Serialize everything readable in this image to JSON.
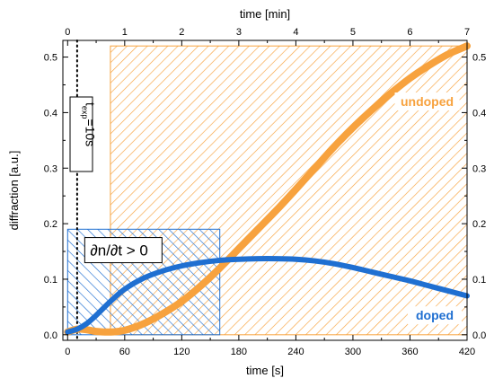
{
  "chart_data": {
    "type": "line",
    "x_bottom": {
      "label": "time [s]",
      "range": [
        -5,
        420
      ],
      "ticks": [
        0,
        60,
        120,
        180,
        240,
        300,
        360,
        420
      ]
    },
    "x_top": {
      "label": "time [min]",
      "range": [
        -0.0833,
        7
      ],
      "ticks": [
        0,
        1,
        2,
        3,
        4,
        5,
        6,
        7
      ]
    },
    "y": {
      "label": "diffraction [a.u.]",
      "range": [
        -0.01,
        0.53
      ],
      "ticks": [
        "0.0",
        "0.1",
        "0.2",
        "0.3",
        "0.4",
        "0.5"
      ]
    },
    "series": [
      {
        "name": "undoped",
        "color": "#f7a23e",
        "x": [
          0,
          10,
          20,
          30,
          45,
          60,
          80,
          100,
          120,
          140,
          160,
          180,
          200,
          220,
          240,
          260,
          280,
          300,
          320,
          340,
          360,
          380,
          400,
          420
        ],
        "y": [
          0.005,
          0.01,
          0.009,
          0.006,
          0.005,
          0.008,
          0.02,
          0.038,
          0.06,
          0.088,
          0.12,
          0.155,
          0.19,
          0.225,
          0.262,
          0.3,
          0.338,
          0.373,
          0.405,
          0.435,
          0.462,
          0.485,
          0.505,
          0.52
        ]
      },
      {
        "name": "doped",
        "color": "#1f6fd1",
        "x": [
          0,
          10,
          20,
          30,
          45,
          60,
          80,
          100,
          120,
          140,
          160,
          180,
          200,
          220,
          240,
          260,
          280,
          300,
          320,
          340,
          360,
          380,
          400,
          420
        ],
        "y": [
          0.005,
          0.01,
          0.02,
          0.035,
          0.06,
          0.082,
          0.102,
          0.115,
          0.124,
          0.13,
          0.134,
          0.136,
          0.137,
          0.137,
          0.136,
          0.133,
          0.128,
          0.121,
          0.113,
          0.105,
          0.097,
          0.088,
          0.079,
          0.07
        ]
      }
    ],
    "regions": [
      {
        "name": "undoped-region",
        "x": [
          45,
          420
        ],
        "y": [
          0,
          0.52
        ],
        "color": "#f7a23e",
        "hatch": "diagonal-down"
      },
      {
        "name": "doped-region",
        "x": [
          0,
          160
        ],
        "y": [
          0,
          0.19
        ],
        "color": "#1f6fd1",
        "hatch": "diagonal-up"
      }
    ],
    "vline": {
      "x": 10
    },
    "annotations": {
      "texp_main": "t",
      "texp_sub": "exp",
      "texp_value": "=10s",
      "derivative": "∂n/∂t > 0",
      "undoped": "undoped",
      "doped": "doped"
    },
    "grid": false
  }
}
